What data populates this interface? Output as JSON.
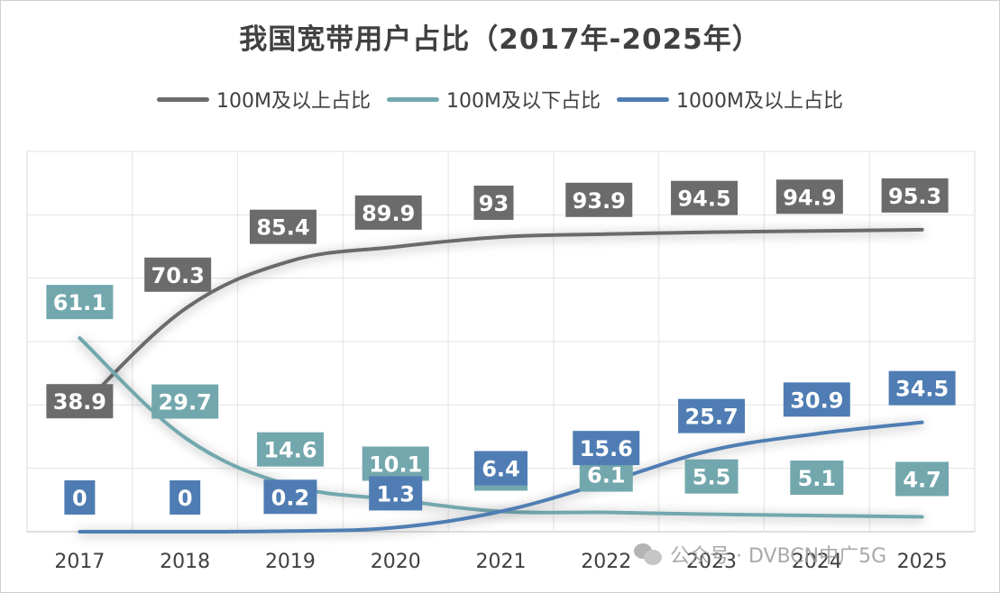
{
  "chart_data": {
    "type": "line",
    "title": "我国宽带用户占比（2017年-2025年）",
    "xlabel": "",
    "ylabel": "",
    "categories": [
      "2017",
      "2018",
      "2019",
      "2020",
      "2021",
      "2022",
      "2023",
      "2024",
      "2025"
    ],
    "ylim": [
      0,
      120
    ],
    "grid": true,
    "legend_position": "top",
    "series": [
      {
        "name": "100M及以上占比",
        "color": "#6b6b6b",
        "label_bg": "#6b6b6b",
        "values": [
          38.9,
          70.3,
          85.4,
          89.9,
          93,
          93.9,
          94.5,
          94.9,
          95.3
        ],
        "labels": [
          "38.9",
          "70.3",
          "85.4",
          "89.9",
          "93",
          "93.9",
          "94.5",
          "94.9",
          "95.3"
        ]
      },
      {
        "name": "100M及以下占比",
        "color": "#72a7ad",
        "label_bg": "#72a7ad",
        "values": [
          61.1,
          29.7,
          14.6,
          10.1,
          6.4,
          6.1,
          5.5,
          5.1,
          4.7
        ],
        "labels": [
          "61.1",
          "29.7",
          "14.6",
          "10.1",
          "6.4",
          "6.1",
          "5.5",
          "5.1",
          "4.7"
        ]
      },
      {
        "name": "1000M及以上占比",
        "color": "#4f7db3",
        "label_bg": "#4f7db3",
        "values": [
          0,
          0,
          0.2,
          1.3,
          6.4,
          15.6,
          25.7,
          30.9,
          34.5
        ],
        "labels": [
          "0",
          "0",
          "0.2",
          "1.3",
          "6.4",
          "15.6",
          "25.7",
          "30.9",
          "34.5"
        ]
      }
    ]
  },
  "watermark": {
    "text": "公众号 · DVBCN中广5G",
    "icon": "wechat-icon"
  }
}
